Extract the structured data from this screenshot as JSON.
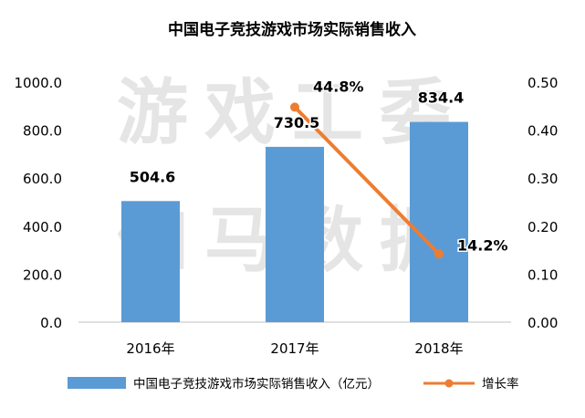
{
  "chart_data": {
    "type": "bar",
    "title": "中国电子竞技游戏市场实际销售收入",
    "categories": [
      "2016年",
      "2017年",
      "2018年"
    ],
    "series": [
      {
        "name": "中国电子竞技游戏市场实际销售收入（亿元）",
        "type": "bar",
        "axis": "left",
        "values": [
          504.6,
          730.5,
          834.4
        ],
        "labels": [
          "504.6",
          "730.5",
          "834.4"
        ],
        "color": "#5b9bd5"
      },
      {
        "name": "增长率",
        "type": "line",
        "axis": "right",
        "x": [
          "2017年",
          "2018年"
        ],
        "values": [
          0.448,
          0.142
        ],
        "labels": [
          "44.8%",
          "14.2%"
        ],
        "color": "#ed7d31"
      }
    ],
    "y_left": {
      "ylim": [
        0,
        1000
      ],
      "ticks": [
        "0.0",
        "200.0",
        "400.0",
        "600.0",
        "800.0",
        "1000.0"
      ]
    },
    "y_right": {
      "ylim": [
        0,
        0.5
      ],
      "ticks": [
        "0.00",
        "0.10",
        "0.20",
        "0.30",
        "0.40",
        "0.50"
      ]
    },
    "grid": false,
    "legend_position": "bottom",
    "watermark": [
      "游戏工委",
      "伽马数据"
    ],
    "colors": {
      "bar": "#5b9bd5",
      "line": "#ed7d31",
      "text": "#000000",
      "watermark": "#d0d0d0"
    }
  }
}
